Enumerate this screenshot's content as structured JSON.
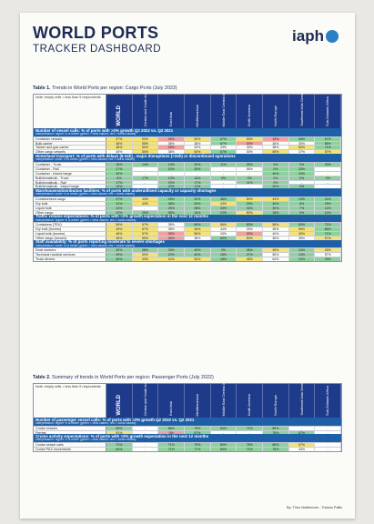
{
  "header": {
    "title": "WORLD PORTS",
    "subtitle": "TRACKER DASHBOARD",
    "logo_text": "iaph"
  },
  "colors": {
    "header_blue": "#1e3a8a",
    "section_blue": "#1f5fa8",
    "green": "#8fd19e",
    "yellow": "#f3e27a",
    "red": "#f2a0a0",
    "plain": "#ffffff"
  },
  "columns": [
    "WORLD",
    "Central and South America",
    "East Asia",
    "Mediterranean",
    "Middle East Central Asia",
    "North America",
    "North Europe",
    "Southeast Asia Oceania",
    "Sub-Saharan Africa"
  ],
  "table1": {
    "caption_bold": "Table 1.",
    "caption": " Trends in World Ports per region: Cargo Ports (July 2022)",
    "note": "Note: empty cells = less than 5 respondents",
    "sections": [
      {
        "title": "Number of vessel calls: % of ports with >2% growth Q2 2022 vs. Q2 2021",
        "note": "interpretation: higher % is better (green = best values; red = worst values)",
        "rows": [
          {
            "label": "Container vessels",
            "v": [
              "47%",
              "50%",
              "25%",
              "50%",
              "67%",
              "53%",
              "19%",
              "65%",
              "67%"
            ]
          },
          {
            "label": "Bulk carrier",
            "v": [
              "46%",
              "55%",
              "38%",
              "38%",
              "67%",
              "20%",
              "36%",
              "30%",
              "85%"
            ]
          },
          {
            "label": "Tanker and gas carrier",
            "v": [
              "46%",
              "50%",
              "25%",
              "43%",
              "33%",
              "33%",
              "38%",
              "50%",
              "71%"
            ]
          },
          {
            "label": "Other cargo vessels",
            "v": [
              "40%",
              "50%",
              "38%",
              "54%",
              "67%",
              "30%",
              "55%",
              "37%",
              "57%"
            ]
          }
        ]
      },
      {
        "title": "Hinterland transport: % of ports with delays (6-24h) , major disruptions (>24h) or discontinued operations",
        "note": "interpretation: lower % is better (green = best values; red = worst values)",
        "rows": [
          {
            "label": "Container - Truck",
            "v": [
              "15%",
              "14%",
              "13%",
              "32%",
              "11%",
              "33%",
              "9%",
              "0%",
              "29%"
            ]
          },
          {
            "label": "Container - Rail",
            "v": [
              "27%",
              "-",
              "20%",
              "33%",
              "-",
              "56%",
              "0%",
              "33%",
              "-"
            ]
          },
          {
            "label": "Container - Inland barge",
            "v": [
              "32%",
              "-",
              "-",
              "-",
              "-",
              "-",
              "40%",
              "20%",
              "-"
            ]
          },
          {
            "label": "Bulk/breakbulk - Truck",
            "v": [
              "6%",
              "17%",
              "13%",
              "14%",
              "0%",
              "0%",
              "0%",
              "0%",
              "0%"
            ]
          },
          {
            "label": "Bulk/breakbulk - Rail",
            "v": [
              "17%",
              "-",
              "20%",
              "17%",
              "-",
              "11%",
              "0%",
              "-",
              "-"
            ]
          },
          {
            "label": "Bulk/breakbulk - Inland barge",
            "v": [
              "19%",
              "-",
              "20%",
              "11%",
              "-",
              "-",
              "20%",
              "0%",
              "-"
            ]
          }
        ]
      },
      {
        "title": "Warehouses/distribution facilities: % of ports with underutilised capacity or capacity shortages",
        "note": "interpretation: lower % is better (green = best values; red = worst values)",
        "rows": [
          {
            "label": "Containerized cargo",
            "v": [
              "27%",
              "43%",
              "25%",
              "20%",
              "38%",
              "50%",
              "43%",
              "13%",
              "14%"
            ]
          },
          {
            "label": "Dry bulk",
            "v": [
              "31%",
              "43%",
              "38%",
              "29%",
              "43%",
              "29%",
              "40%",
              "8%",
              "29%"
            ]
          },
          {
            "label": "Liquid bulk",
            "v": [
              "24%",
              "-",
              "25%",
              "38%",
              "33%",
              "33%",
              "30%",
              "7%",
              "14%"
            ]
          },
          {
            "label": "Other cargo",
            "v": [
              "22%",
              "29%",
              "38%",
              "15%",
              "22%",
              "50%",
              "18%",
              "0%",
              "14%"
            ]
          }
        ]
      },
      {
        "title": "Traffic volume expectations: % of ports with >2% growth expectation in the next 12 months",
        "note": "interpretation: higher % is better (green = best values; red = worst values)",
        "rows": [
          {
            "label": "Containers (TEU)",
            "v": [
              "59%",
              "57%",
              "38%",
              "69%",
              "56%",
              "83%",
              "58%",
              "63%",
              "71%"
            ]
          },
          {
            "label": "Dry bulk (tonnes)",
            "v": [
              "49%",
              "57%",
              "38%",
              "46%",
              "44%",
              "33%",
              "36%",
              "55%",
              "86%"
            ]
          },
          {
            "label": "Liquid bulk (tonnes)",
            "v": [
              "46%",
              "57%",
              "25%",
              "55%",
              "33%",
              "20%",
              "40%",
              "45%",
              "71%"
            ]
          },
          {
            "label": "Other cargo (tonnes)",
            "v": [
              "45%",
              "50%",
              "25%",
              "38%",
              "60%",
              "50%",
              "36%",
              "35%",
              "57%"
            ]
          }
        ]
      },
      {
        "title": "Staff availability: % of ports reporting moderate to severe shortages",
        "note": "interpretation: lower % is better (green = best values; red = worst values)",
        "rows": [
          {
            "label": "Dock workers",
            "v": [
              "32%",
              "38%",
              "33%",
              "40%",
              "0%",
              "36%",
              "45%",
              "22%",
              "43%"
            ]
          },
          {
            "label": "Technical nautical services",
            "v": [
              "29%",
              "50%",
              "22%",
              "40%",
              "18%",
              "27%",
              "56%",
              "13%",
              "57%"
            ]
          },
          {
            "label": "Truck drivers",
            "v": [
              "40%",
              "43%",
              "44%",
              "53%",
              "18%",
              "45%",
              "64%",
              "22%",
              "29%"
            ]
          }
        ]
      }
    ]
  },
  "table2": {
    "caption_bold": "Table 2.",
    "caption": " Summary of trends in World Ports per region: Passenger Ports (July 2022)",
    "note": "Note: empty cells = less than 5 respondents",
    "sections": [
      {
        "title": "Number of passenger vessel calls: % of ports with >2% growth Q2 2022 vs. Q2 2021",
        "note": "interpretation: higher % is better (green = best values; red = worst values)",
        "rows": [
          {
            "label": "Cruise vessels",
            "v": [
              "63%",
              "-",
              "88%",
              "79%",
              "60%",
              "71%",
              "89%",
              "-",
              "-"
            ]
          },
          {
            "label": "Ferries",
            "v": [
              "51%",
              "-",
              "0%",
              "67%",
              "-",
              "-",
              "75%",
              "67%",
              "-"
            ]
          }
        ]
      },
      {
        "title": "Cruise activity expectations: % of ports with >2% growth expectation in the next 12 months",
        "note": "interpretation: higher % is better (green = best values; red = worst values)",
        "rows": [
          {
            "label": "Cruise vessel calls",
            "v": [
              "71%",
              "-",
              "71%",
              "79%",
              "80%",
              "75%",
              "68%",
              "57%",
              "-"
            ]
          },
          {
            "label": "Cruise PAX movements",
            "v": [
              "64%",
              "-",
              "71%",
              "77%",
              "80%",
              "71%",
              "75%",
              "43%",
              "-"
            ]
          }
        ]
      }
    ]
  },
  "footer": {
    "credit": "By: Theo Notteboom - Thanos Pallis"
  }
}
